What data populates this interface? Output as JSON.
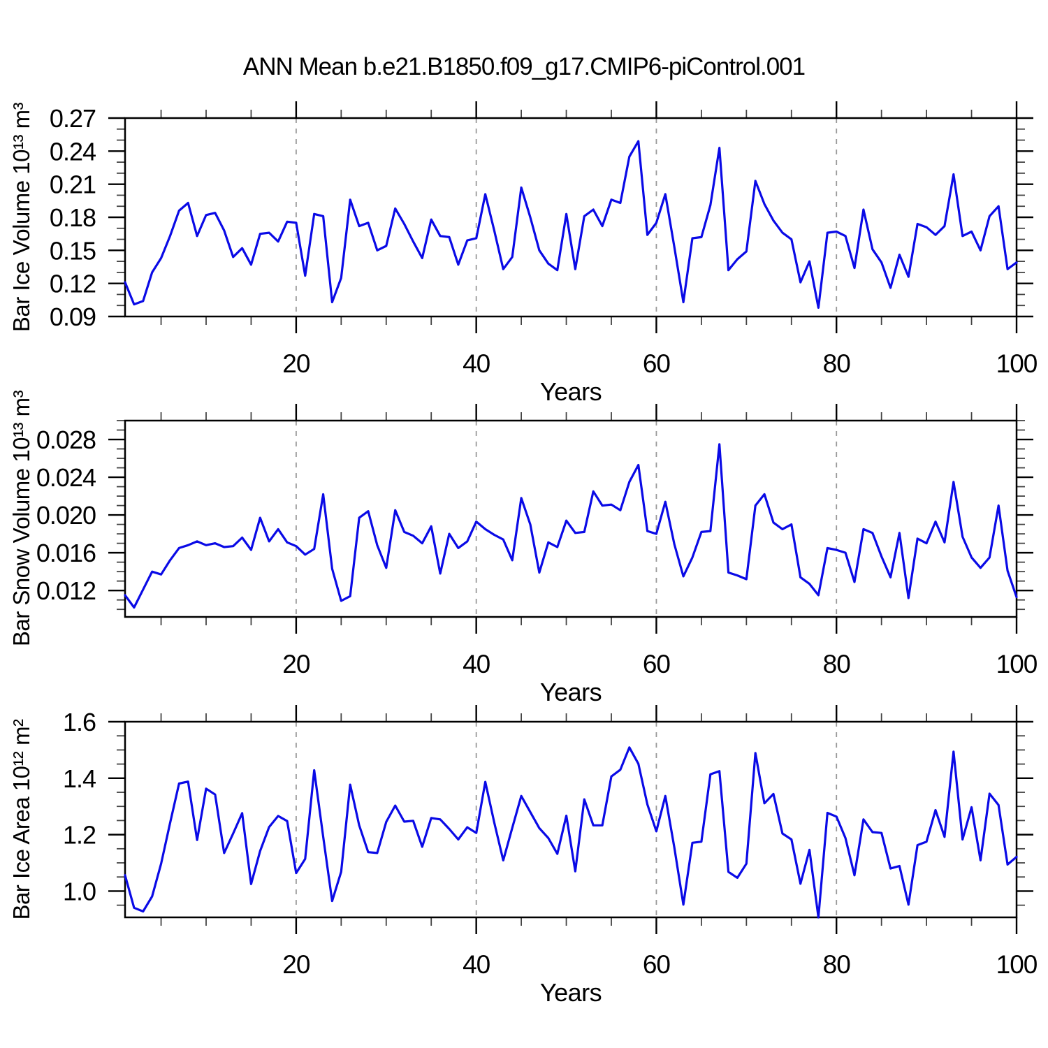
{
  "title": "ANN Mean b.e21.B1850.f09_g17.CMIP6-piControl.001",
  "styles": {
    "line_color": "#0a0ae6",
    "axis_color": "#000000",
    "minor_tick_color": "#444444",
    "grid_color": "#999999",
    "background": "#ffffff"
  },
  "chart_data": {
    "type": "line",
    "title": "ANN Mean b.e21.B1850.f09_g17.CMIP6-piControl.001",
    "legend": "none",
    "grid": "vertical dashed at x=20,40,60,80",
    "x": {
      "label": "Years",
      "range": [
        1,
        100
      ],
      "ticks": [
        20,
        40,
        60,
        80,
        100
      ],
      "tick_labels": [
        "20",
        "40",
        "60",
        "80",
        "100"
      ],
      "minor_tick_step": 5,
      "gridlines_at": [
        20,
        40,
        60,
        80
      ],
      "values": [
        1,
        2,
        3,
        4,
        5,
        6,
        7,
        8,
        9,
        10,
        11,
        12,
        13,
        14,
        15,
        16,
        17,
        18,
        19,
        20,
        21,
        22,
        23,
        24,
        25,
        26,
        27,
        28,
        29,
        30,
        31,
        32,
        33,
        34,
        35,
        36,
        37,
        38,
        39,
        40,
        41,
        42,
        43,
        44,
        45,
        46,
        47,
        48,
        49,
        50,
        51,
        52,
        53,
        54,
        55,
        56,
        57,
        58,
        59,
        60,
        61,
        62,
        63,
        64,
        65,
        66,
        67,
        68,
        69,
        70,
        71,
        72,
        73,
        74,
        75,
        76,
        77,
        78,
        79,
        80,
        81,
        82,
        83,
        84,
        85,
        86,
        87,
        88,
        89,
        90,
        91,
        92,
        93,
        94,
        95,
        96,
        97,
        98,
        99,
        100
      ]
    },
    "panels": [
      {
        "name": "bar-ice-volume",
        "ylabel": "Bar Ice Volume 10¹³ m³",
        "ylim": [
          0.09,
          0.27
        ],
        "yticks": [
          0.09,
          0.12,
          0.15,
          0.18,
          0.21,
          0.24,
          0.27
        ],
        "ytick_labels": [
          "0.09",
          "0.12",
          "0.15",
          "0.18",
          "0.21",
          "0.24",
          "0.27"
        ],
        "y_minor_step": 0.01,
        "values": [
          0.121,
          0.101,
          0.104,
          0.13,
          0.143,
          0.163,
          0.186,
          0.193,
          0.163,
          0.182,
          0.184,
          0.168,
          0.144,
          0.152,
          0.137,
          0.165,
          0.166,
          0.158,
          0.176,
          0.175,
          0.127,
          0.183,
          0.181,
          0.103,
          0.125,
          0.196,
          0.172,
          0.175,
          0.15,
          0.154,
          0.188,
          0.174,
          0.158,
          0.143,
          0.178,
          0.163,
          0.162,
          0.137,
          0.159,
          0.161,
          0.201,
          0.168,
          0.133,
          0.144,
          0.207,
          0.18,
          0.15,
          0.138,
          0.132,
          0.183,
          0.133,
          0.181,
          0.187,
          0.172,
          0.196,
          0.193,
          0.235,
          0.249,
          0.164,
          0.175,
          0.201,
          0.153,
          0.103,
          0.161,
          0.162,
          0.191,
          0.243,
          0.132,
          0.142,
          0.149,
          0.213,
          0.192,
          0.177,
          0.166,
          0.16,
          0.121,
          0.14,
          0.098,
          0.166,
          0.167,
          0.163,
          0.134,
          0.187,
          0.151,
          0.139,
          0.116,
          0.146,
          0.126,
          0.174,
          0.171,
          0.164,
          0.172,
          0.219,
          0.163,
          0.167,
          0.15,
          0.181,
          0.19,
          0.133,
          0.139
        ]
      },
      {
        "name": "bar-snow-volume",
        "ylabel": "Bar Snow Volume 10¹³ m³",
        "ylim": [
          0.0092,
          0.03
        ],
        "yticks": [
          0.012,
          0.016,
          0.02,
          0.024,
          0.028
        ],
        "ytick_labels": [
          "0.012",
          "0.016",
          "0.020",
          "0.024",
          "0.028"
        ],
        "y_minor_step": 0.001,
        "values": [
          0.0115,
          0.0102,
          0.0121,
          0.014,
          0.0137,
          0.0152,
          0.0165,
          0.0168,
          0.0172,
          0.0168,
          0.017,
          0.0166,
          0.0167,
          0.0176,
          0.0163,
          0.0197,
          0.0172,
          0.0185,
          0.0171,
          0.0167,
          0.0158,
          0.0164,
          0.0222,
          0.0143,
          0.0109,
          0.0114,
          0.0197,
          0.0204,
          0.0168,
          0.0144,
          0.0205,
          0.0182,
          0.0178,
          0.017,
          0.0188,
          0.0138,
          0.018,
          0.0165,
          0.0172,
          0.0193,
          0.0185,
          0.0179,
          0.0174,
          0.0152,
          0.0218,
          0.019,
          0.0139,
          0.0171,
          0.0166,
          0.0194,
          0.0181,
          0.0182,
          0.0225,
          0.021,
          0.0211,
          0.0205,
          0.0235,
          0.0253,
          0.0183,
          0.018,
          0.0214,
          0.0169,
          0.0135,
          0.0155,
          0.0182,
          0.0183,
          0.0275,
          0.0139,
          0.0136,
          0.0132,
          0.021,
          0.0222,
          0.0192,
          0.0185,
          0.019,
          0.0134,
          0.0127,
          0.0115,
          0.0165,
          0.0163,
          0.016,
          0.0129,
          0.0185,
          0.0181,
          0.0156,
          0.0134,
          0.0181,
          0.0112,
          0.0175,
          0.017,
          0.0193,
          0.0171,
          0.0235,
          0.0177,
          0.0155,
          0.0144,
          0.0155,
          0.021,
          0.0141,
          0.0113
        ]
      },
      {
        "name": "bar-ice-area",
        "ylabel": "Bar Ice Area 10¹² m²",
        "ylim": [
          0.907,
          1.6
        ],
        "yticks": [
          1.0,
          1.2,
          1.4,
          1.6
        ],
        "ytick_labels": [
          "1.0",
          "1.2",
          "1.4",
          "1.6"
        ],
        "y_minor_step": 0.05,
        "values": [
          1.056,
          0.941,
          0.928,
          0.981,
          1.097,
          1.241,
          1.381,
          1.388,
          1.181,
          1.363,
          1.342,
          1.135,
          1.204,
          1.276,
          1.025,
          1.142,
          1.227,
          1.266,
          1.248,
          1.064,
          1.114,
          1.428,
          1.192,
          0.965,
          1.068,
          1.377,
          1.233,
          1.138,
          1.135,
          1.245,
          1.303,
          1.246,
          1.249,
          1.157,
          1.259,
          1.254,
          1.22,
          1.183,
          1.226,
          1.206,
          1.387,
          1.243,
          1.109,
          1.224,
          1.337,
          1.28,
          1.223,
          1.188,
          1.132,
          1.267,
          1.07,
          1.325,
          1.233,
          1.233,
          1.406,
          1.43,
          1.509,
          1.451,
          1.307,
          1.212,
          1.337,
          1.154,
          0.952,
          1.171,
          1.175,
          1.414,
          1.425,
          1.068,
          1.047,
          1.097,
          1.489,
          1.311,
          1.344,
          1.204,
          1.183,
          1.026,
          1.146,
          0.907,
          1.277,
          1.264,
          1.188,
          1.056,
          1.254,
          1.209,
          1.206,
          1.08,
          1.089,
          0.952,
          1.163,
          1.175,
          1.287,
          1.192,
          1.494,
          1.183,
          1.297,
          1.109,
          1.345,
          1.305,
          1.094,
          1.121
        ]
      }
    ]
  }
}
